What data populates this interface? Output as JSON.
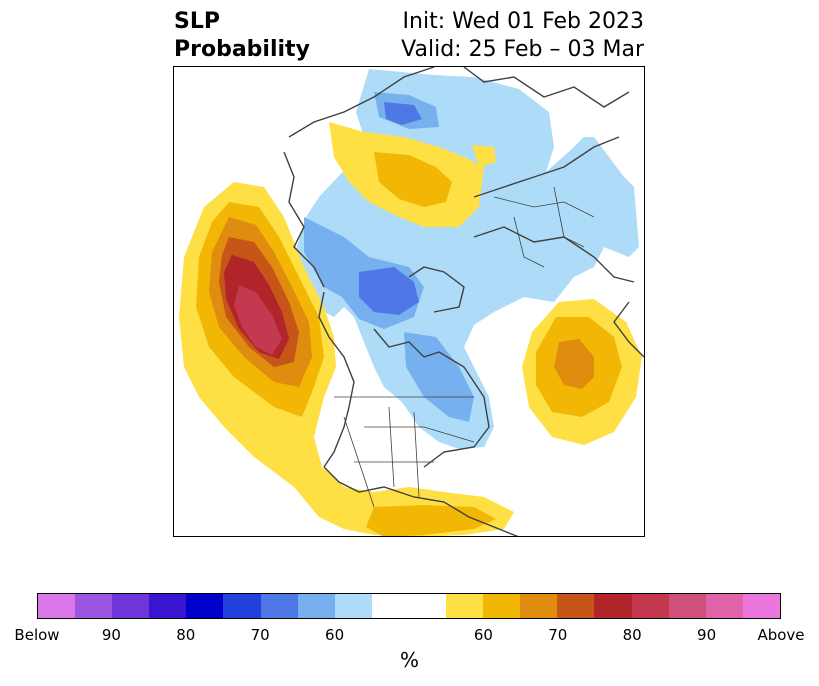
{
  "header": {
    "title_line1": "SLP",
    "title_line2": "Probability",
    "init_text": "Init: Wed 01 Feb 2023",
    "valid_text": "Valid: 25 Feb – 03 Mar"
  },
  "colorbar": {
    "unit": "%",
    "colors": [
      "#d977e9",
      "#9c55e0",
      "#6e35d8",
      "#3a16d2",
      "#0000cd",
      "#2340dd",
      "#4e78e6",
      "#77b0ef",
      "#aedbf8",
      "#ffffff",
      "#ffffff",
      "#fee045",
      "#f2b705",
      "#e08c0e",
      "#c65518",
      "#b0242a",
      "#c33a50",
      "#cf507a",
      "#de63a8",
      "#ea76de"
    ],
    "labels": [
      "Below",
      "90",
      "80",
      "70",
      "60",
      "60",
      "70",
      "80",
      "90",
      "Above"
    ]
  },
  "map_layers": {
    "below_colors": [
      "#aedbf8",
      "#77b0ef",
      "#4e78e6"
    ],
    "above_colors": [
      "#fee045",
      "#f2b705",
      "#e08c0e",
      "#c65518",
      "#b0242a",
      "#c33a50"
    ],
    "coast_color": "#404040"
  }
}
